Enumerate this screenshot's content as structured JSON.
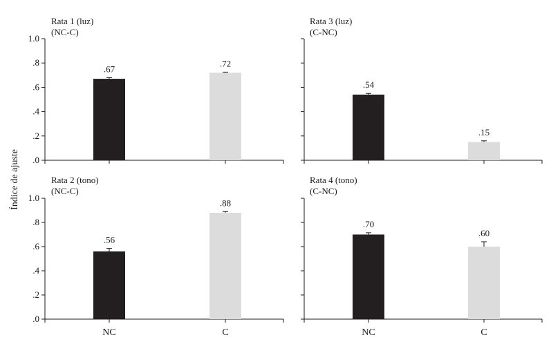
{
  "ylabel": "Índice de ajuste",
  "categories": [
    "NC",
    "C"
  ],
  "colors": {
    "NC": "#231f20",
    "C": "#dcdcdc"
  },
  "chart_data": [
    {
      "type": "bar",
      "title": "Rata 1 (luz)",
      "subtitle": "(NC-C)",
      "categories": [
        "NC",
        "C"
      ],
      "values": [
        0.67,
        0.72
      ],
      "value_labels": [
        ".67",
        ".72"
      ],
      "errors": [
        0.01,
        0.005
      ],
      "ylim": [
        0,
        1.0
      ],
      "yticks": [
        0,
        0.2,
        0.4,
        0.6,
        0.8,
        1.0
      ],
      "ytick_labels": [
        ".0",
        ".2",
        ".4",
        ".6",
        ".8",
        "1.0"
      ]
    },
    {
      "type": "bar",
      "title": "Rata 3 (luz)",
      "subtitle": "(C-NC)",
      "categories": [
        "NC",
        "C"
      ],
      "values": [
        0.54,
        0.15
      ],
      "value_labels": [
        ".54",
        ".15"
      ],
      "errors": [
        0.01,
        0.01
      ],
      "ylim": [
        0,
        1.0
      ],
      "yticks": [
        0,
        0.2,
        0.4,
        0.6,
        0.8,
        1.0
      ],
      "ytick_labels": [
        "",
        "",
        "",
        "",
        "",
        ""
      ]
    },
    {
      "type": "bar",
      "title": "Rata 2 (tono)",
      "subtitle": "(NC-C)",
      "categories": [
        "NC",
        "C"
      ],
      "values": [
        0.56,
        0.88
      ],
      "value_labels": [
        ".56",
        ".88"
      ],
      "errors": [
        0.025,
        0.01
      ],
      "ylim": [
        0,
        1.0
      ],
      "yticks": [
        0,
        0.2,
        0.4,
        0.6,
        0.8,
        1.0
      ],
      "ytick_labels": [
        ".0",
        ".2",
        ".4",
        ".6",
        ".8",
        "1.0"
      ]
    },
    {
      "type": "bar",
      "title": "Rata 4 (tono)",
      "subtitle": "(C-NC)",
      "categories": [
        "NC",
        "C"
      ],
      "values": [
        0.7,
        0.6
      ],
      "value_labels": [
        ".70",
        ".60"
      ],
      "errors": [
        0.015,
        0.04
      ],
      "ylim": [
        0,
        1.0
      ],
      "yticks": [
        0,
        0.2,
        0.4,
        0.6,
        0.8,
        1.0
      ],
      "ytick_labels": [
        "",
        "",
        "",
        "",
        "",
        ""
      ]
    }
  ]
}
